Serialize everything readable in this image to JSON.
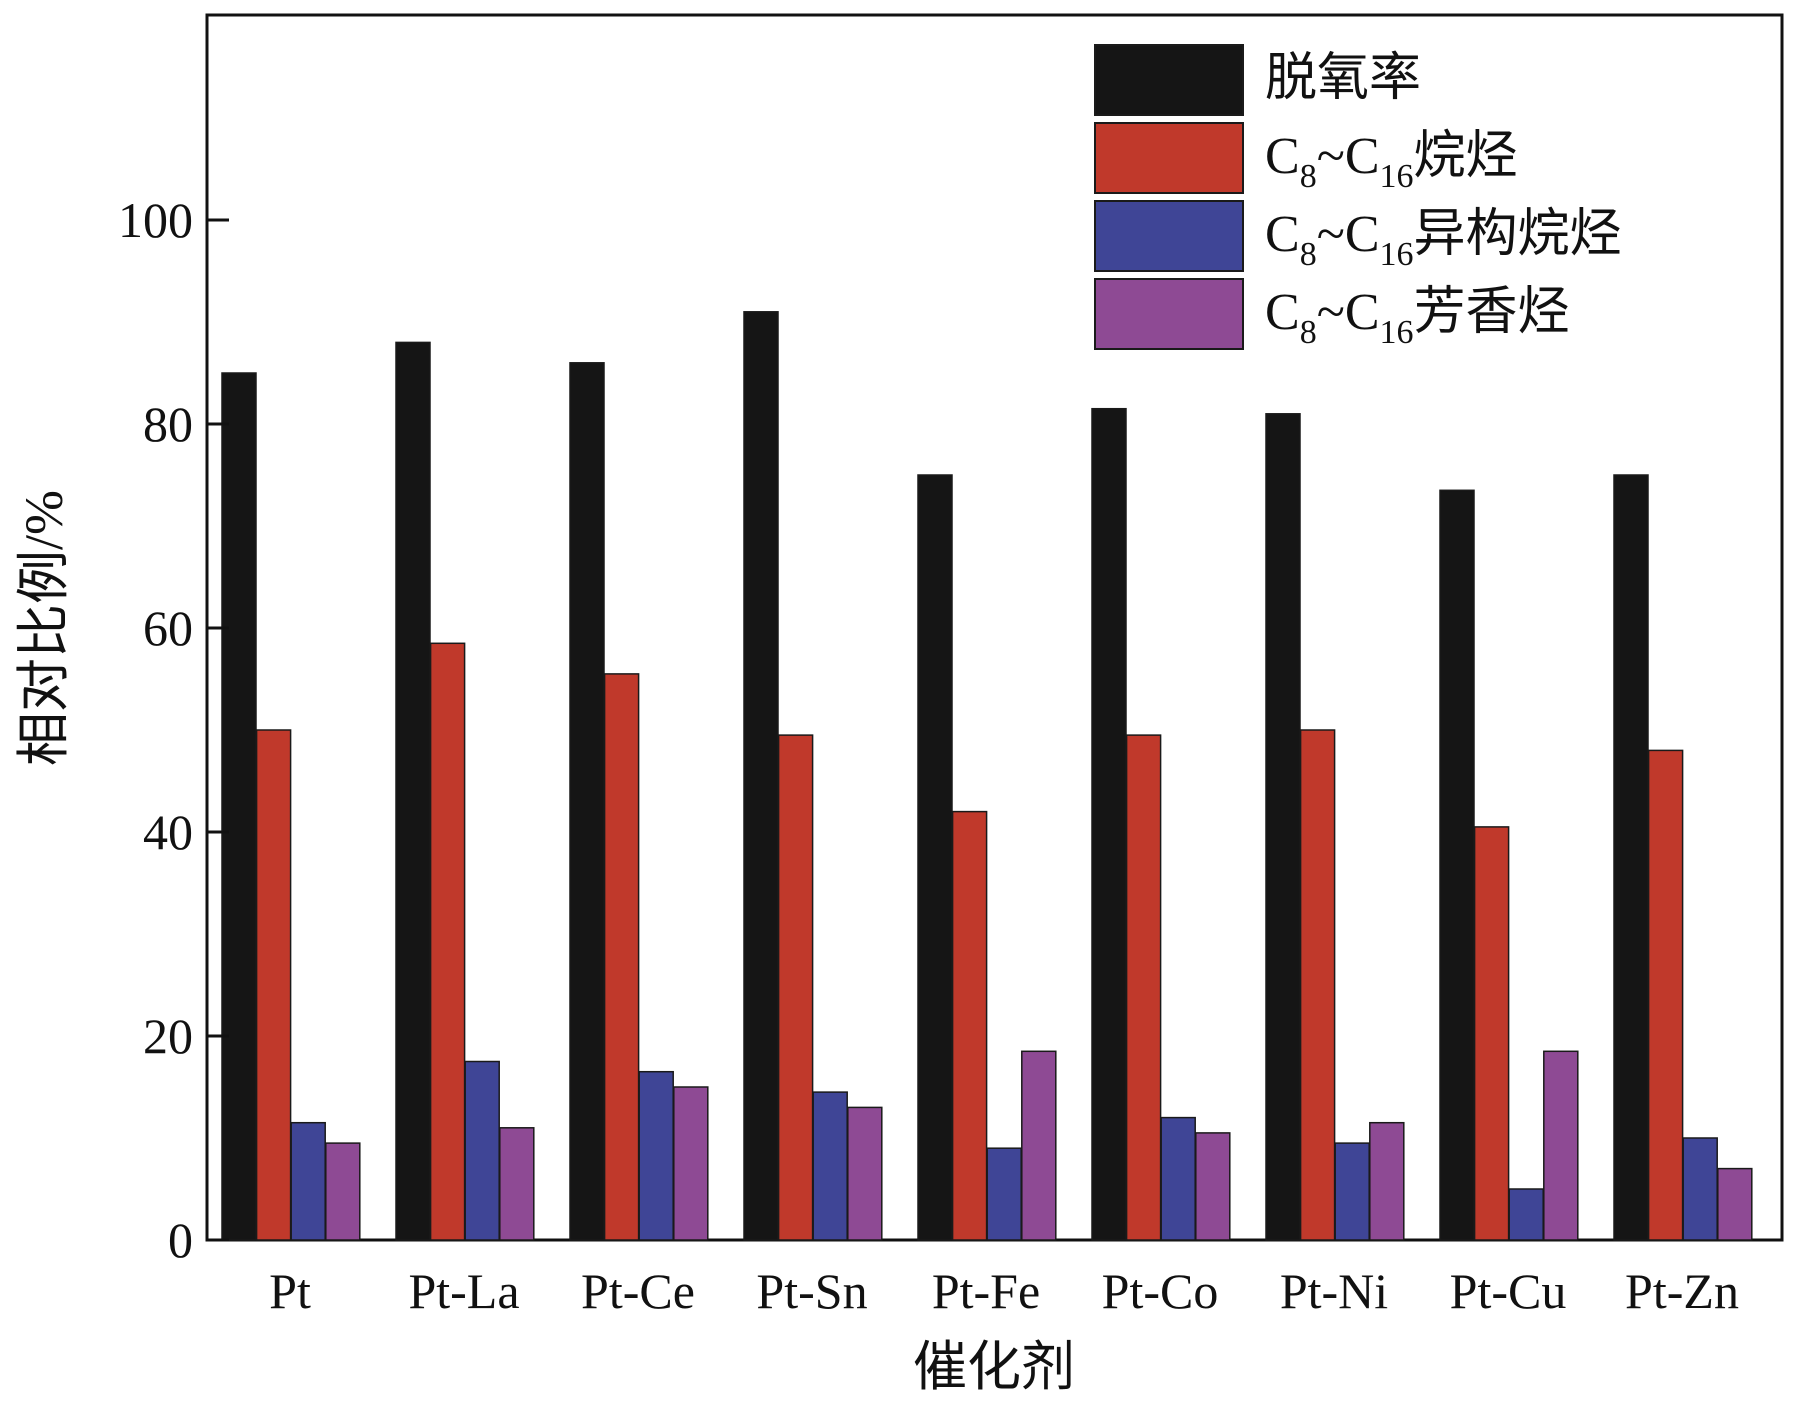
{
  "chart_data": {
    "type": "bar",
    "title": "",
    "xlabel": "催化剂",
    "ylabel": "相对比例/%",
    "ylim": [
      0,
      120
    ],
    "yticks": [
      0,
      20,
      40,
      60,
      80,
      100
    ],
    "grid": false,
    "legend_position": "top-right",
    "categories": [
      "Pt",
      "Pt-La",
      "Pt-Ce",
      "Pt-Sn",
      "Pt-Fe",
      "Pt-Co",
      "Pt-Ni",
      "Pt-Cu",
      "Pt-Zn"
    ],
    "series": [
      {
        "name": "脱氧率",
        "legend": {
          "main1": "脱氧率"
        },
        "color": "#151515",
        "values": [
          85,
          88,
          86,
          91,
          75,
          81.5,
          81,
          73.5,
          75
        ]
      },
      {
        "name": "C8~C16烷烃",
        "legend": {
          "main1": "C",
          "sub1": "8",
          "main2": "~C",
          "sub2": "16",
          "main3": "烷烃"
        },
        "color": "#c0392b",
        "values": [
          50,
          58.5,
          55.5,
          49.5,
          42,
          49.5,
          50,
          40.5,
          48
        ]
      },
      {
        "name": "C8~C16异构烷烃",
        "legend": {
          "main1": "C",
          "sub1": "8",
          "main2": "~C",
          "sub2": "16",
          "main3": "异构烷烃"
        },
        "color": "#3f4596",
        "values": [
          11.5,
          17.5,
          16.5,
          14.5,
          9,
          12,
          9.5,
          5,
          10
        ]
      },
      {
        "name": "C8~C16芳香烃",
        "legend": {
          "main1": "C",
          "sub1": "8",
          "main2": "~C",
          "sub2": "16",
          "main3": "芳香烃"
        },
        "color": "#8e4a94",
        "values": [
          9.5,
          11,
          15,
          13,
          18.5,
          10.5,
          11.5,
          18.5,
          7
        ]
      }
    ]
  }
}
